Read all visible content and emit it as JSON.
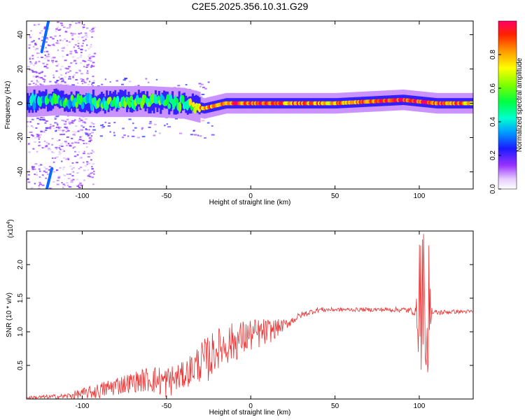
{
  "title": "C2E5.2025.356.10.31.G29",
  "colors": {
    "line": "#e83232",
    "axis": "#000000",
    "background": "#ffffff"
  },
  "chart_data": [
    {
      "type": "heatmap",
      "name": "spectrogram",
      "xlabel": "Height of straight line (km)",
      "ylabel": "Frequency (Hz)",
      "xlim": [
        -133,
        132
      ],
      "ylim": [
        -50,
        48
      ],
      "x_ticks": [
        -100,
        -50,
        0,
        50,
        100
      ],
      "y_ticks": [
        -40,
        -20,
        0,
        20,
        40
      ],
      "colorbar": {
        "label": "Normalized spectral amplitude",
        "range": [
          0.0,
          1.0
        ],
        "ticks": [
          0.0,
          0.2,
          0.4,
          0.6,
          0.8
        ]
      },
      "ridge": {
        "description": "dominant energy near 0 Hz across height range",
        "points": [
          {
            "x": -130,
            "freq": 1,
            "amp": 0.35
          },
          {
            "x": -115,
            "freq": 2,
            "amp": 0.45
          },
          {
            "x": -100,
            "freq": 1,
            "amp": 0.45
          },
          {
            "x": -80,
            "freq": 1,
            "amp": 0.5
          },
          {
            "x": -60,
            "freq": 1,
            "amp": 0.5
          },
          {
            "x": -40,
            "freq": 0,
            "amp": 0.5
          },
          {
            "x": -28,
            "freq": -3,
            "amp": 0.8
          },
          {
            "x": -15,
            "freq": 0,
            "amp": 0.9
          },
          {
            "x": 0,
            "freq": 0,
            "amp": 0.9
          },
          {
            "x": 20,
            "freq": 0,
            "amp": 0.85
          },
          {
            "x": 50,
            "freq": 0,
            "amp": 0.8
          },
          {
            "x": 90,
            "freq": 2,
            "amp": 0.95
          },
          {
            "x": 110,
            "freq": 0,
            "amp": 0.9
          },
          {
            "x": 130,
            "freq": 0,
            "amp": 0.8
          }
        ]
      },
      "streaks": [
        {
          "x_start": -124,
          "freq_start": 30,
          "x_end": -120,
          "freq_end": 48
        },
        {
          "x_start": -121,
          "freq_start": -50,
          "x_end": -118,
          "freq_end": -38
        }
      ]
    },
    {
      "type": "line",
      "name": "snr",
      "xlabel": "Height of straight line (km)",
      "ylabel": "SNR (10 * v/v)",
      "multiplier_label": "(x10",
      "multiplier_exp": "4",
      "multiplier_close": ")",
      "xlim": [
        -133,
        132
      ],
      "ylim": [
        0,
        2.5
      ],
      "x_ticks": [
        -100,
        -50,
        0,
        50,
        100
      ],
      "y_ticks": [
        0.5,
        1.0,
        1.5,
        2.0
      ],
      "y_tick_labels": [
        "0.5",
        "1.0",
        "1.5",
        "2.0"
      ],
      "series": [
        {
          "name": "SNR",
          "x": [
            -133,
            -110,
            -100,
            -90,
            -80,
            -70,
            -60,
            -50,
            -40,
            -30,
            -25,
            -20,
            -10,
            0,
            10,
            20,
            30,
            40,
            50,
            70,
            90,
            98,
            100,
            102,
            104,
            106,
            108,
            120,
            132
          ],
          "values": [
            0.02,
            0.04,
            0.08,
            0.12,
            0.2,
            0.25,
            0.3,
            0.25,
            0.35,
            0.55,
            0.6,
            0.75,
            0.85,
            0.95,
            1.0,
            1.1,
            1.25,
            1.33,
            1.33,
            1.33,
            1.33,
            1.3,
            1.3,
            1.6,
            0.5,
            1.4,
            1.28,
            1.3,
            1.3
          ],
          "noise_amplitude": [
            0.02,
            0.04,
            0.08,
            0.12,
            0.15,
            0.15,
            0.2,
            0.25,
            0.2,
            0.3,
            0.35,
            0.3,
            0.3,
            0.25,
            0.2,
            0.08,
            0.05,
            0.04,
            0.03,
            0.03,
            0.04,
            0.06,
            0.9,
            0.9,
            0.5,
            0.4,
            0.05,
            0.03,
            0.03
          ]
        }
      ]
    }
  ]
}
